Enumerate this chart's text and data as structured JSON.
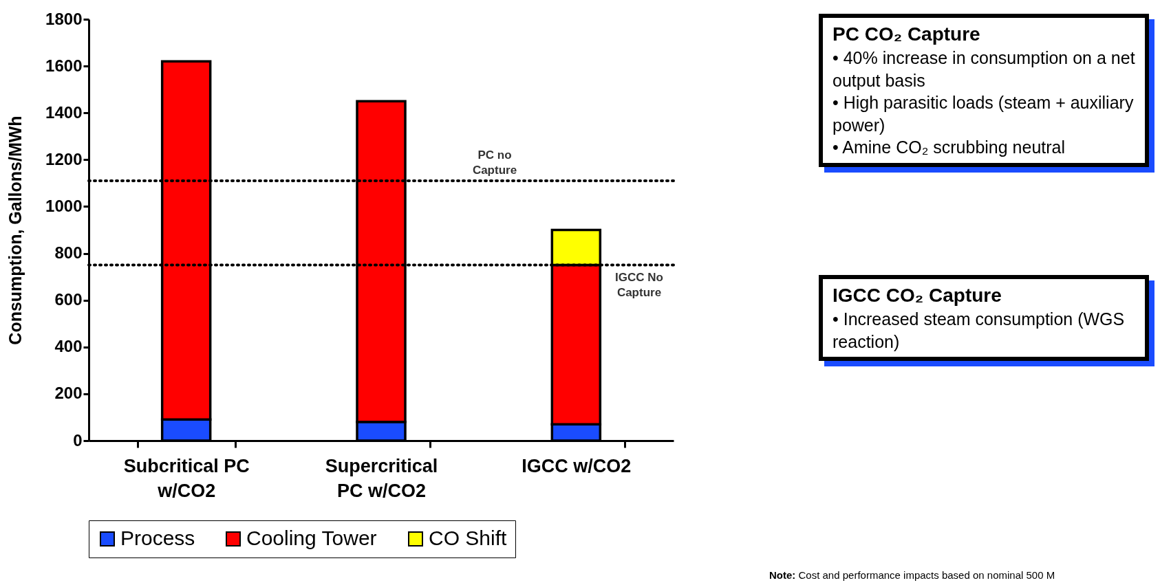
{
  "chart_data": {
    "type": "bar",
    "stacked": true,
    "ylabel": "Consumption, Gallons/MWh",
    "categories": [
      "Subcritical PC w/CO2",
      "Supercritical PC w/CO2",
      "IGCC w/CO2"
    ],
    "series": [
      {
        "name": "Process",
        "color": "#1a4cff",
        "values": [
          90,
          80,
          70
        ]
      },
      {
        "name": "Cooling Tower",
        "color": "#ff0000",
        "values": [
          1530,
          1370,
          680
        ]
      },
      {
        "name": "CO Shift",
        "color": "#ffff00",
        "values": [
          null,
          null,
          150
        ]
      }
    ],
    "ylim": [
      0,
      1800
    ],
    "yticks": [
      0,
      200,
      400,
      600,
      800,
      1000,
      1200,
      1400,
      1600,
      1800
    ],
    "grid": false,
    "legend": "bottom",
    "ref_lines": [
      {
        "axis": "y",
        "value": 1110,
        "label": "PC no Capture",
        "line_style": "dotted"
      },
      {
        "axis": "y",
        "value": 750,
        "label": "IGCC No Capture",
        "line_style": "dotted"
      }
    ],
    "annotations": [
      "PC CO₂ Capture\n• 40% increase in consumption on a net output basis\n• High parasitic loads (steam + auxiliary power)\n• Amine CO₂ scrubbing neutral",
      "IGCC CO₂ Capture\n• Increased steam consumption (WGS reaction)",
      "Note: Cost and performance impacts based on nominal 500 M"
    ]
  }
}
